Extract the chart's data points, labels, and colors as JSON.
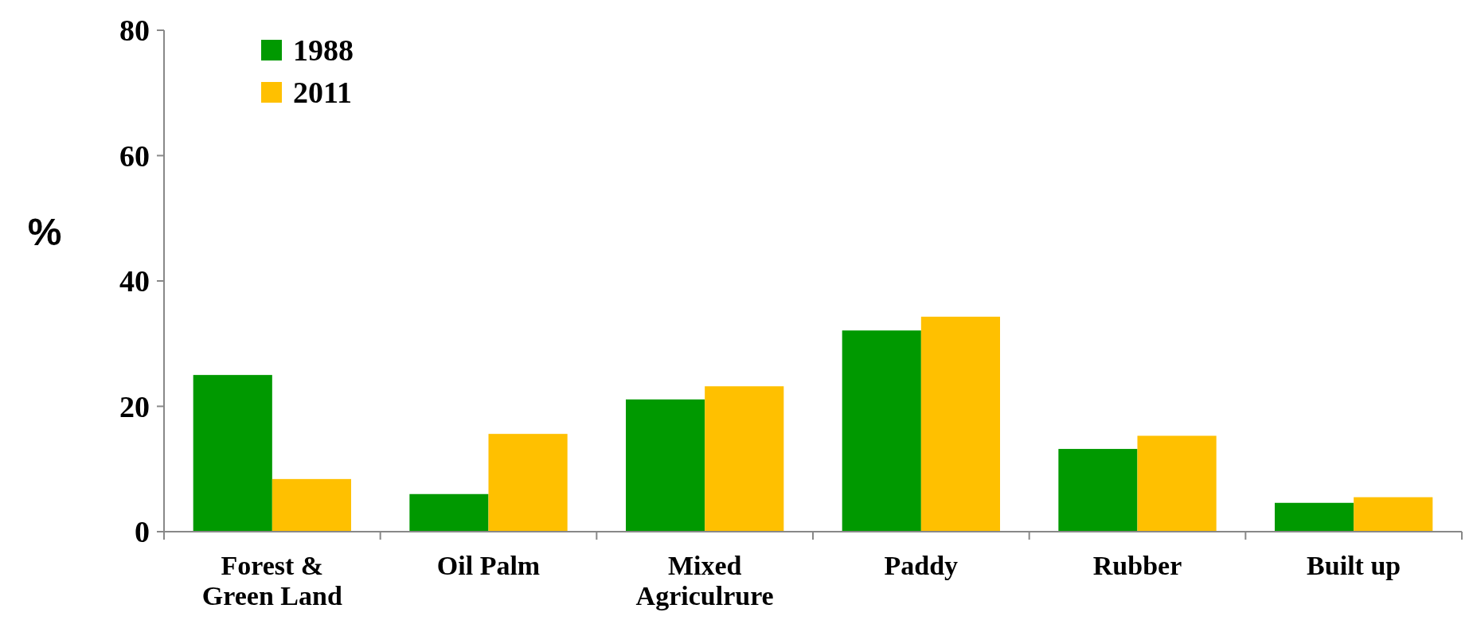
{
  "chart_data": {
    "type": "bar",
    "ylabel": "%",
    "categories": [
      "Forest & Green Land",
      "Oil Palm",
      "Mixed Agriculrure",
      "Paddy",
      "Rubber",
      "Built up"
    ],
    "series": [
      {
        "name": "1988",
        "color": "#009900",
        "values": [
          25,
          6,
          21.1,
          32.1,
          13.2,
          4.6
        ]
      },
      {
        "name": "2011",
        "color": "#ffc000",
        "values": [
          8.4,
          15.6,
          23.2,
          34.3,
          15.3,
          5.5
        ]
      }
    ],
    "ylim": [
      0,
      80
    ],
    "yticks": [
      0,
      20,
      40,
      60,
      80
    ],
    "grid": false,
    "legend": "top left"
  }
}
